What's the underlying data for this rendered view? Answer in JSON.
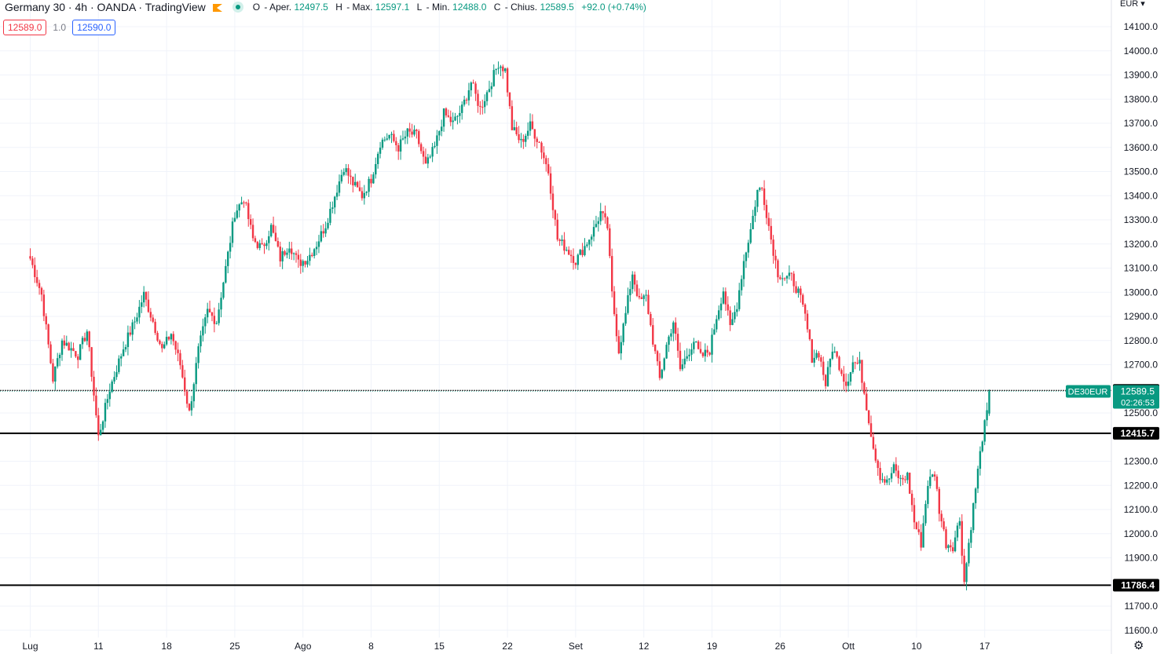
{
  "header": {
    "symbol": "Germany 30 · 4h · OANDA · TradingView",
    "open_label": "O",
    "open_name": "Aper.",
    "open": "12497.5",
    "high_label": "H",
    "high_name": "Max.",
    "high": "12597.1",
    "low_label": "L",
    "low_name": "Min.",
    "low": "12488.0",
    "close_label": "C",
    "close_name": "Chius.",
    "close": "12589.5",
    "change": "+92.0 (+0.74%)"
  },
  "trade": {
    "sell": "12589.0",
    "spread": "1.0",
    "buy": "12590.0"
  },
  "currency": "EUR",
  "colors": {
    "up": "#089981",
    "down": "#f23645",
    "grid": "#f0f3fa",
    "text": "#131722",
    "hline": "#000000"
  },
  "icons": {
    "marker": "tag-icon",
    "status": "market-open-dot-icon",
    "settings": "gear-icon",
    "currency_dropdown": "chevron-down-icon"
  },
  "chart_data": {
    "type": "candlestick",
    "interval": "4h",
    "y_min": 11600,
    "y_max": 14100,
    "y_ticks": [
      "14100.0",
      "14000.0",
      "13900.0",
      "13800.0",
      "13700.0",
      "13600.0",
      "13500.0",
      "13400.0",
      "13300.0",
      "13200.0",
      "13100.0",
      "13000.0",
      "12900.0",
      "12800.0",
      "12700.0",
      "12500.0",
      "12300.0",
      "12200.0",
      "12100.0",
      "12000.0",
      "11900.0",
      "11700.0",
      "11600.0"
    ],
    "x_ticks": [
      "Lug",
      "11",
      "18",
      "25",
      "Ago",
      "8",
      "15",
      "22",
      "Set",
      "12",
      "19",
      "26",
      "Ott",
      "10",
      "17"
    ],
    "path_points": [
      {
        "t": 0,
        "v": 13140
      },
      {
        "t": 5,
        "v": 12990
      },
      {
        "t": 10,
        "v": 12640
      },
      {
        "t": 14,
        "v": 12800
      },
      {
        "t": 21,
        "v": 12740
      },
      {
        "t": 25,
        "v": 12840
      },
      {
        "t": 30,
        "v": 12400
      },
      {
        "t": 35,
        "v": 12600
      },
      {
        "t": 41,
        "v": 12770
      },
      {
        "t": 46,
        "v": 12880
      },
      {
        "t": 50,
        "v": 12990
      },
      {
        "t": 54,
        "v": 12880
      },
      {
        "t": 58,
        "v": 12760
      },
      {
        "t": 62,
        "v": 12830
      },
      {
        "t": 66,
        "v": 12700
      },
      {
        "t": 70,
        "v": 12500
      },
      {
        "t": 74,
        "v": 12760
      },
      {
        "t": 78,
        "v": 12920
      },
      {
        "t": 82,
        "v": 12880
      },
      {
        "t": 86,
        "v": 13100
      },
      {
        "t": 90,
        "v": 13330
      },
      {
        "t": 94,
        "v": 13390
      },
      {
        "t": 98,
        "v": 13220
      },
      {
        "t": 102,
        "v": 13180
      },
      {
        "t": 106,
        "v": 13270
      },
      {
        "t": 110,
        "v": 13140
      },
      {
        "t": 114,
        "v": 13200
      },
      {
        "t": 118,
        "v": 13120
      },
      {
        "t": 122,
        "v": 13140
      },
      {
        "t": 126,
        "v": 13200
      },
      {
        "t": 130,
        "v": 13280
      },
      {
        "t": 134,
        "v": 13400
      },
      {
        "t": 138,
        "v": 13520
      },
      {
        "t": 142,
        "v": 13450
      },
      {
        "t": 146,
        "v": 13400
      },
      {
        "t": 150,
        "v": 13470
      },
      {
        "t": 154,
        "v": 13620
      },
      {
        "t": 158,
        "v": 13650
      },
      {
        "t": 162,
        "v": 13600
      },
      {
        "t": 166,
        "v": 13660
      },
      {
        "t": 170,
        "v": 13650
      },
      {
        "t": 174,
        "v": 13520
      },
      {
        "t": 178,
        "v": 13600
      },
      {
        "t": 182,
        "v": 13740
      },
      {
        "t": 186,
        "v": 13700
      },
      {
        "t": 190,
        "v": 13760
      },
      {
        "t": 194,
        "v": 13870
      },
      {
        "t": 198,
        "v": 13760
      },
      {
        "t": 202,
        "v": 13850
      },
      {
        "t": 206,
        "v": 13950
      },
      {
        "t": 209,
        "v": 13920
      },
      {
        "t": 212,
        "v": 13680
      },
      {
        "t": 216,
        "v": 13620
      },
      {
        "t": 220,
        "v": 13690
      },
      {
        "t": 224,
        "v": 13620
      },
      {
        "t": 228,
        "v": 13500
      },
      {
        "t": 232,
        "v": 13220
      },
      {
        "t": 236,
        "v": 13180
      },
      {
        "t": 240,
        "v": 13130
      },
      {
        "t": 244,
        "v": 13190
      },
      {
        "t": 248,
        "v": 13260
      },
      {
        "t": 251,
        "v": 13330
      },
      {
        "t": 254,
        "v": 13270
      },
      {
        "t": 256,
        "v": 12990
      },
      {
        "t": 259,
        "v": 12760
      },
      {
        "t": 262,
        "v": 12910
      },
      {
        "t": 265,
        "v": 13080
      },
      {
        "t": 268,
        "v": 12960
      },
      {
        "t": 271,
        "v": 12980
      },
      {
        "t": 274,
        "v": 12800
      },
      {
        "t": 277,
        "v": 12640
      },
      {
        "t": 280,
        "v": 12780
      },
      {
        "t": 283,
        "v": 12880
      },
      {
        "t": 286,
        "v": 12680
      },
      {
        "t": 289,
        "v": 12740
      },
      {
        "t": 292,
        "v": 12800
      },
      {
        "t": 295,
        "v": 12730
      },
      {
        "t": 299,
        "v": 12760
      },
      {
        "t": 302,
        "v": 12900
      },
      {
        "t": 305,
        "v": 13010
      },
      {
        "t": 308,
        "v": 12850
      },
      {
        "t": 311,
        "v": 12950
      },
      {
        "t": 314,
        "v": 13130
      },
      {
        "t": 317,
        "v": 13260
      },
      {
        "t": 320,
        "v": 13420
      },
      {
        "t": 322,
        "v": 13430
      },
      {
        "t": 324,
        "v": 13330
      },
      {
        "t": 326,
        "v": 13220
      },
      {
        "t": 329,
        "v": 13080
      },
      {
        "t": 332,
        "v": 13060
      },
      {
        "t": 335,
        "v": 13060
      },
      {
        "t": 338,
        "v": 13000
      },
      {
        "t": 341,
        "v": 12900
      },
      {
        "t": 344,
        "v": 12730
      },
      {
        "t": 347,
        "v": 12750
      },
      {
        "t": 350,
        "v": 12620
      },
      {
        "t": 353,
        "v": 12770
      },
      {
        "t": 356,
        "v": 12700
      },
      {
        "t": 359,
        "v": 12620
      },
      {
        "t": 362,
        "v": 12710
      },
      {
        "t": 365,
        "v": 12700
      },
      {
        "t": 368,
        "v": 12530
      },
      {
        "t": 371,
        "v": 12360
      },
      {
        "t": 374,
        "v": 12240
      },
      {
        "t": 377,
        "v": 12210
      },
      {
        "t": 380,
        "v": 12270
      },
      {
        "t": 383,
        "v": 12220
      },
      {
        "t": 386,
        "v": 12240
      },
      {
        "t": 389,
        "v": 12050
      },
      {
        "t": 392,
        "v": 11960
      },
      {
        "t": 395,
        "v": 12210
      },
      {
        "t": 398,
        "v": 12250
      },
      {
        "t": 400,
        "v": 12100
      },
      {
        "t": 403,
        "v": 11960
      },
      {
        "t": 406,
        "v": 11950
      },
      {
        "t": 409,
        "v": 12060
      },
      {
        "t": 411,
        "v": 11800
      },
      {
        "t": 413,
        "v": 11960
      },
      {
        "t": 416,
        "v": 12190
      },
      {
        "t": 419,
        "v": 12400
      },
      {
        "t": 421,
        "v": 12498
      },
      {
        "t": 422,
        "v": 12590
      }
    ],
    "horizontal_levels": [
      {
        "value": 12593.3,
        "label": "12593.3"
      },
      {
        "value": 12415.7,
        "label": "12415.7"
      },
      {
        "value": 11786.4,
        "label": "11786.4"
      }
    ],
    "last_price": {
      "symbol": "DE30EUR",
      "value": "12589.5",
      "countdown": "02:26:53"
    }
  }
}
